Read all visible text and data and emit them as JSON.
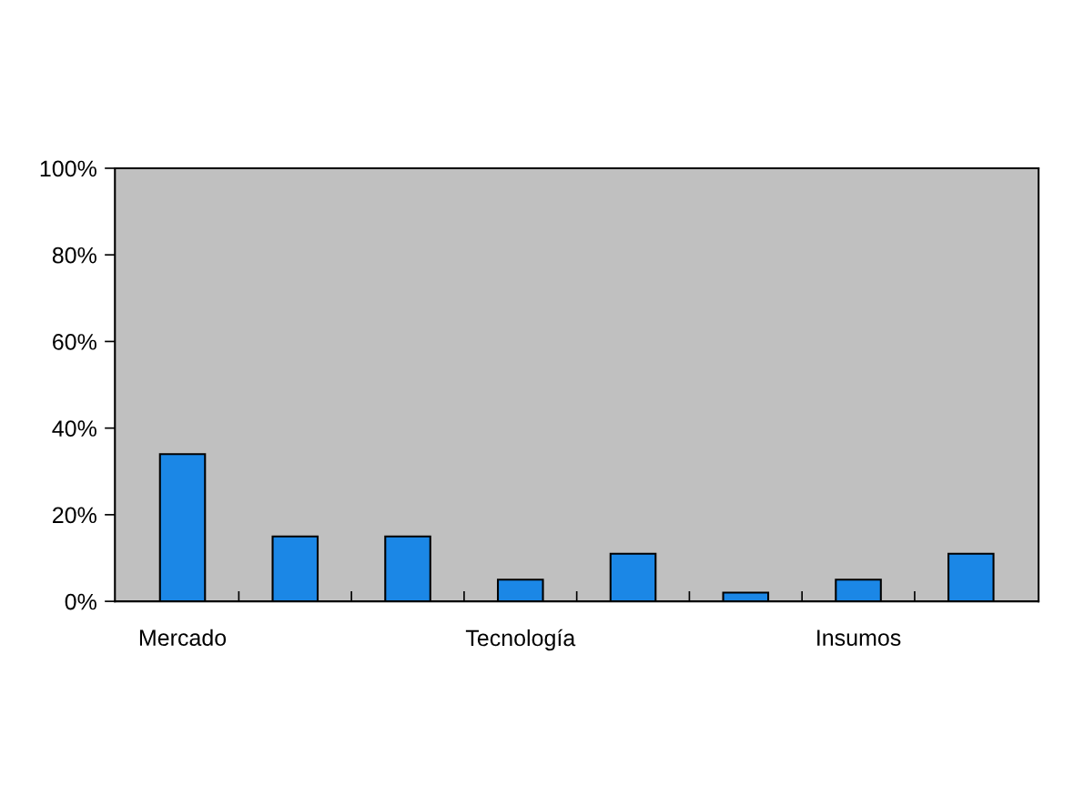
{
  "chart_data": {
    "type": "bar",
    "categories": [
      "Mercado",
      null,
      null,
      "Tecnología",
      null,
      null,
      "Insumos",
      null
    ],
    "values": [
      34,
      15,
      15,
      5,
      11,
      2,
      5,
      11
    ],
    "color": "#1b87e6",
    "ylim": [
      0,
      100
    ],
    "yticks": [
      {
        "value": 0,
        "label": "0%"
      },
      {
        "value": 20,
        "label": "20%"
      },
      {
        "value": 40,
        "label": "40%"
      },
      {
        "value": 60,
        "label": "60%"
      },
      {
        "value": 80,
        "label": "80%"
      },
      {
        "value": 100,
        "label": "100%"
      }
    ]
  }
}
